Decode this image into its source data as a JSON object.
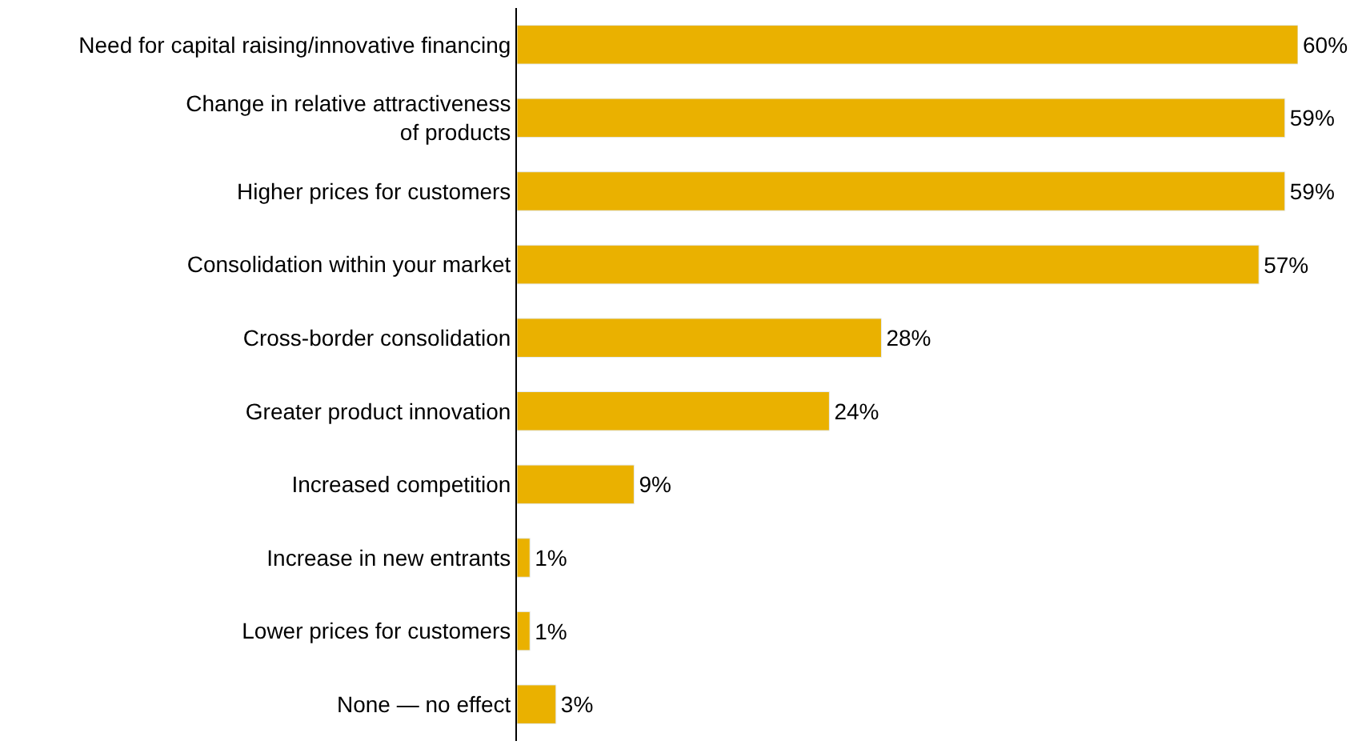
{
  "chart_data": {
    "type": "bar",
    "orientation": "horizontal",
    "categories": [
      "Need for capital raising/innovative financing",
      "Change in relative attractiveness\nof products",
      "Higher prices for customers",
      "Consolidation within your market",
      "Cross-border consolidation",
      "Greater product innovation",
      "Increased competition",
      "Increase in new entrants",
      "Lower prices for customers",
      "None — no effect"
    ],
    "values": [
      60,
      59,
      59,
      57,
      28,
      24,
      9,
      1,
      1,
      3
    ],
    "value_labels": [
      "60%",
      "59%",
      "59%",
      "57%",
      "28%",
      "24%",
      "9%",
      "1%",
      "1%",
      "3%"
    ],
    "color": "#eab100"
  }
}
